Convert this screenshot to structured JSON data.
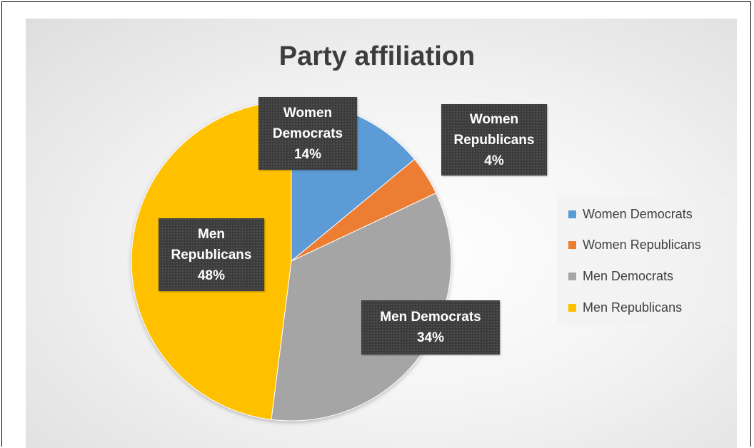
{
  "chart_data": {
    "type": "pie",
    "title": "Party affiliation",
    "categories": [
      "Women Democrats",
      "Women Republicans",
      "Men Democrats",
      "Men Republicans"
    ],
    "values": [
      14,
      4,
      34,
      48
    ],
    "unit": "%",
    "colors": [
      "#5b9bd5",
      "#ed7d31",
      "#a5a5a5",
      "#ffc000"
    ],
    "labels": [
      {
        "lines": [
          "Women",
          "Democrats",
          "14%"
        ]
      },
      {
        "lines": [
          "Women",
          "Republicans",
          "4%"
        ]
      },
      {
        "lines": [
          "Men Democrats",
          "34%"
        ]
      },
      {
        "lines": [
          "Men",
          "Republicans",
          "48%"
        ]
      }
    ],
    "legend": {
      "position": "right",
      "entries": [
        "Women Democrats",
        "Women Republicans",
        "Men Democrats",
        "Men Republicans"
      ]
    },
    "start_angle": "12 o'clock",
    "direction": "clockwise"
  }
}
